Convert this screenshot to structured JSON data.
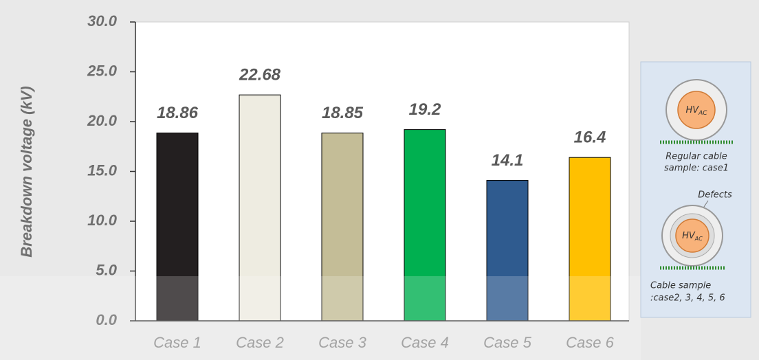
{
  "chart_data": {
    "type": "bar",
    "y_label": "Breakdown voltage (kV)",
    "categories": [
      "Case 1",
      "Case 2",
      "Case 3",
      "Case 4",
      "Case 5",
      "Case 6"
    ],
    "values": [
      18.86,
      22.68,
      18.85,
      19.2,
      14.1,
      16.4
    ],
    "colors": [
      "#231f20",
      "#eeece1",
      "#c4bd97",
      "#00b050",
      "#2f5b8f",
      "#ffc000"
    ],
    "ylim": [
      0,
      30
    ],
    "yticks": [
      {
        "value": 0,
        "label": "0.0"
      },
      {
        "value": 5,
        "label": "5.0"
      },
      {
        "value": 10,
        "label": "10.0"
      },
      {
        "value": 15,
        "label": "15.0"
      },
      {
        "value": 20,
        "label": "20.0"
      },
      {
        "value": 25,
        "label": "25.0"
      },
      {
        "value": 30,
        "label": "30.0"
      }
    ],
    "inset": {
      "hv": "HV",
      "hv_sub": "AC",
      "regular": [
        "Regular cable",
        "sample: case1"
      ],
      "defects": "Defects",
      "defect_sample": [
        "Cable sample",
        ":case2, 3, 4, 5, 6"
      ]
    }
  }
}
